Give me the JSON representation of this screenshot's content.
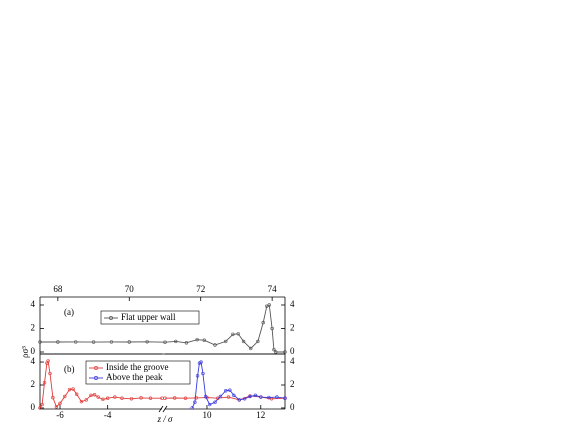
{
  "chart_data": [
    {
      "type": "line",
      "annotation": "(a)",
      "y_label": "ρσ³",
      "xlim": [
        67.5,
        74.36
      ],
      "xticks": [
        68,
        70,
        72,
        74
      ],
      "ylim": [
        -0.17,
        4.68
      ],
      "yticks": [
        0,
        2,
        4
      ],
      "series": [
        {
          "name": "Flat upper wall",
          "color": "#555555",
          "x": [
            67.5,
            68,
            68.5,
            69,
            69.5,
            70,
            70.5,
            71,
            71.3,
            71.6,
            71.9,
            72.1,
            72.4,
            72.7,
            72.9,
            73.05,
            73.2,
            73.4,
            73.6,
            73.75,
            73.85,
            73.92,
            74.0,
            74.05,
            74.1,
            74.36
          ],
          "values": [
            0.85,
            0.85,
            0.86,
            0.84,
            0.86,
            0.85,
            0.87,
            0.83,
            0.9,
            0.78,
            1.05,
            1.0,
            0.6,
            0.9,
            1.5,
            1.55,
            0.9,
            0.3,
            0.9,
            2.5,
            3.9,
            4.0,
            2.0,
            0.2,
            0,
            0
          ]
        }
      ]
    },
    {
      "type": "line",
      "annotation": "(b)",
      "xlim": [
        -6.84,
        -1.72
      ],
      "xticks": [
        -6,
        -4
      ],
      "ylim": [
        -0.09,
        4.7
      ],
      "yticks": [
        0,
        2,
        4
      ],
      "series": [
        {
          "color": "#e03a3a",
          "x": [
            -6.84,
            -6.75,
            -6.65,
            -6.55,
            -6.5,
            -6.42,
            -6.3,
            -6.15,
            -6.0,
            -5.8,
            -5.6,
            -5.45,
            -5.3,
            -5.1,
            -4.9,
            -4.7,
            -4.55,
            -4.4,
            -4.2,
            -4.0,
            -3.7,
            -3.4,
            -3.0,
            -2.6,
            -2.2,
            -1.72
          ],
          "values": [
            0,
            0.3,
            2.2,
            3.9,
            4.1,
            3.0,
            0.9,
            0.1,
            0.4,
            1.0,
            1.6,
            1.65,
            1.2,
            0.55,
            0.7,
            1.1,
            1.15,
            0.95,
            0.75,
            0.85,
            0.95,
            0.85,
            0.8,
            0.88,
            0.85,
            0.85
          ]
        }
      ]
    },
    {
      "type": "line",
      "x_label": "z / σ",
      "xlim": [
        8.44,
        12.9
      ],
      "xticks": [
        10,
        12
      ],
      "ylim": [
        -0.09,
        4.7
      ],
      "yticks": [
        0,
        2,
        4
      ],
      "series": [
        {
          "name": "Inside the groove",
          "color": "#e03a3a",
          "x": [
            8.44,
            8.8,
            9.2,
            9.6,
            10.0,
            10.4,
            10.8,
            11.2,
            11.6,
            12.0,
            12.4,
            12.9
          ],
          "values": [
            0.85,
            0.87,
            0.85,
            0.88,
            0.9,
            0.85,
            0.95,
            0.7,
            1.05,
            0.95,
            0.8,
            0.85
          ]
        },
        {
          "name": "Above the peak",
          "color": "#3a3adf",
          "x": [
            9.45,
            9.55,
            9.65,
            9.72,
            9.78,
            9.85,
            9.95,
            10.1,
            10.3,
            10.5,
            10.7,
            10.85,
            11.0,
            11.2,
            11.4,
            11.6,
            11.8,
            12.0,
            12.3,
            12.6,
            12.9
          ],
          "values": [
            0,
            0.5,
            2.8,
            3.9,
            4.0,
            3.0,
            1.0,
            0.3,
            0.5,
            1.0,
            1.5,
            1.55,
            1.1,
            0.7,
            0.8,
            1.0,
            1.1,
            0.95,
            0.9,
            0.95,
            0.85
          ]
        }
      ]
    }
  ]
}
